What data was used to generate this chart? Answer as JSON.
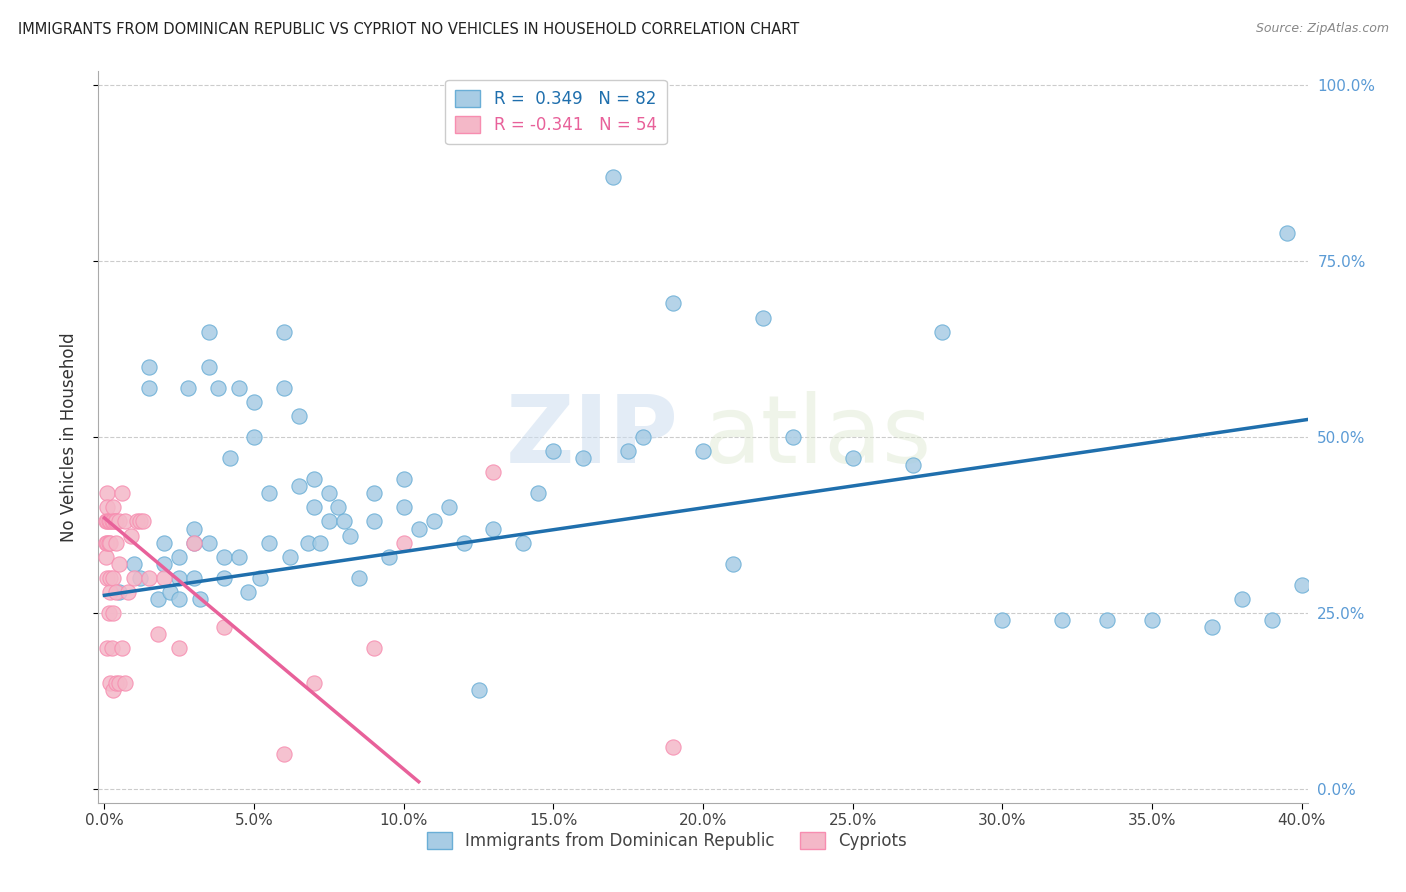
{
  "title": "IMMIGRANTS FROM DOMINICAN REPUBLIC VS CYPRIOT NO VEHICLES IN HOUSEHOLD CORRELATION CHART",
  "source": "Source: ZipAtlas.com",
  "ylabel": "No Vehicles in Household",
  "xlim": [
    -0.002,
    0.402
  ],
  "ylim": [
    -0.02,
    1.02
  ],
  "xticks": [
    0.0,
    0.05,
    0.1,
    0.15,
    0.2,
    0.25,
    0.3,
    0.35,
    0.4
  ],
  "yticks": [
    0.0,
    0.25,
    0.5,
    0.75,
    1.0
  ],
  "xtick_labels": [
    "0.0%",
    "5.0%",
    "10.0%",
    "15.0%",
    "20.0%",
    "25.0%",
    "30.0%",
    "35.0%",
    "40.0%"
  ],
  "ytick_labels": [
    "0.0%",
    "25.0%",
    "50.0%",
    "75.0%",
    "100.0%"
  ],
  "blue_scatter_x": [
    0.005,
    0.01,
    0.012,
    0.015,
    0.015,
    0.018,
    0.02,
    0.02,
    0.022,
    0.025,
    0.025,
    0.025,
    0.028,
    0.03,
    0.03,
    0.03,
    0.032,
    0.035,
    0.035,
    0.035,
    0.038,
    0.04,
    0.04,
    0.042,
    0.045,
    0.045,
    0.048,
    0.05,
    0.05,
    0.052,
    0.055,
    0.055,
    0.06,
    0.06,
    0.062,
    0.065,
    0.065,
    0.068,
    0.07,
    0.07,
    0.072,
    0.075,
    0.075,
    0.078,
    0.08,
    0.082,
    0.085,
    0.09,
    0.09,
    0.095,
    0.1,
    0.1,
    0.105,
    0.11,
    0.115,
    0.12,
    0.125,
    0.13,
    0.14,
    0.145,
    0.15,
    0.16,
    0.17,
    0.175,
    0.18,
    0.19,
    0.2,
    0.21,
    0.22,
    0.23,
    0.25,
    0.27,
    0.28,
    0.3,
    0.32,
    0.335,
    0.35,
    0.37,
    0.38,
    0.39,
    0.395,
    0.4
  ],
  "blue_scatter_y": [
    0.28,
    0.32,
    0.3,
    0.57,
    0.6,
    0.27,
    0.32,
    0.35,
    0.28,
    0.3,
    0.33,
    0.27,
    0.57,
    0.35,
    0.37,
    0.3,
    0.27,
    0.35,
    0.6,
    0.65,
    0.57,
    0.3,
    0.33,
    0.47,
    0.33,
    0.57,
    0.28,
    0.55,
    0.5,
    0.3,
    0.35,
    0.42,
    0.57,
    0.65,
    0.33,
    0.43,
    0.53,
    0.35,
    0.4,
    0.44,
    0.35,
    0.38,
    0.42,
    0.4,
    0.38,
    0.36,
    0.3,
    0.38,
    0.42,
    0.33,
    0.4,
    0.44,
    0.37,
    0.38,
    0.4,
    0.35,
    0.14,
    0.37,
    0.35,
    0.42,
    0.48,
    0.47,
    0.87,
    0.48,
    0.5,
    0.69,
    0.48,
    0.32,
    0.67,
    0.5,
    0.47,
    0.46,
    0.65,
    0.24,
    0.24,
    0.24,
    0.24,
    0.23,
    0.27,
    0.24,
    0.79,
    0.29
  ],
  "pink_scatter_x": [
    0.0005,
    0.0005,
    0.0005,
    0.001,
    0.001,
    0.001,
    0.001,
    0.001,
    0.001,
    0.0015,
    0.0015,
    0.0015,
    0.002,
    0.002,
    0.002,
    0.002,
    0.002,
    0.0025,
    0.0025,
    0.003,
    0.003,
    0.003,
    0.003,
    0.003,
    0.0035,
    0.004,
    0.004,
    0.004,
    0.004,
    0.005,
    0.005,
    0.005,
    0.006,
    0.006,
    0.007,
    0.007,
    0.008,
    0.009,
    0.01,
    0.011,
    0.012,
    0.013,
    0.015,
    0.018,
    0.02,
    0.025,
    0.03,
    0.04,
    0.06,
    0.07,
    0.09,
    0.1,
    0.13,
    0.19
  ],
  "pink_scatter_y": [
    0.38,
    0.35,
    0.33,
    0.42,
    0.4,
    0.38,
    0.35,
    0.3,
    0.2,
    0.38,
    0.35,
    0.25,
    0.38,
    0.35,
    0.3,
    0.28,
    0.15,
    0.38,
    0.2,
    0.4,
    0.38,
    0.3,
    0.25,
    0.14,
    0.38,
    0.38,
    0.35,
    0.28,
    0.15,
    0.38,
    0.32,
    0.15,
    0.42,
    0.2,
    0.38,
    0.15,
    0.28,
    0.36,
    0.3,
    0.38,
    0.38,
    0.38,
    0.3,
    0.22,
    0.3,
    0.2,
    0.35,
    0.23,
    0.05,
    0.15,
    0.2,
    0.35,
    0.45,
    0.06
  ],
  "blue_line_x": [
    0.0,
    0.402
  ],
  "blue_line_y": [
    0.275,
    0.525
  ],
  "pink_line_x": [
    0.0,
    0.105
  ],
  "pink_line_y": [
    0.385,
    0.01
  ],
  "blue_R": "0.349",
  "blue_N": "82",
  "pink_R": "-0.341",
  "pink_N": "54",
  "blue_color": "#a8cce4",
  "pink_color": "#f4b8c8",
  "blue_dot_edge": "#6aaed6",
  "pink_dot_edge": "#f78db0",
  "blue_line_color": "#1f6fad",
  "pink_line_color": "#e8619a",
  "legend1_label": "Immigrants from Dominican Republic",
  "legend2_label": "Cypriots",
  "watermark_zip": "ZIP",
  "watermark_atlas": "atlas",
  "background_color": "#ffffff",
  "grid_color": "#cccccc"
}
